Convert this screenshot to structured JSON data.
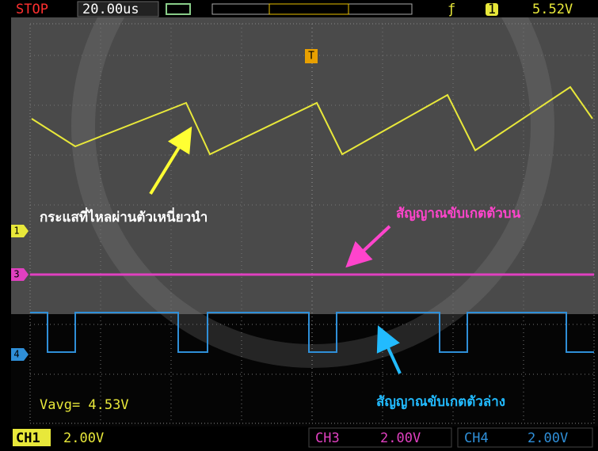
{
  "status": "STOP",
  "timebase": "20.00us",
  "trigger_channel": "1",
  "trigger_level": "5.52V",
  "markers": {
    "trigger": "T",
    "ch1": "1",
    "ch3": "3",
    "ch4": "4"
  },
  "measurement": "Vavg= 4.53V",
  "channels": [
    {
      "name": "CH1",
      "scale": "2.00V"
    },
    {
      "name": "CH3",
      "scale": "2.00V"
    },
    {
      "name": "CH4",
      "scale": "2.00V"
    }
  ],
  "annotations": [
    "กระแสที่ไหลผ่านตัวเหนี่ยวนำ",
    "สัญญาณขับเกตตัวบน",
    "สัญญาณขับเกตตัวล่าง"
  ]
}
